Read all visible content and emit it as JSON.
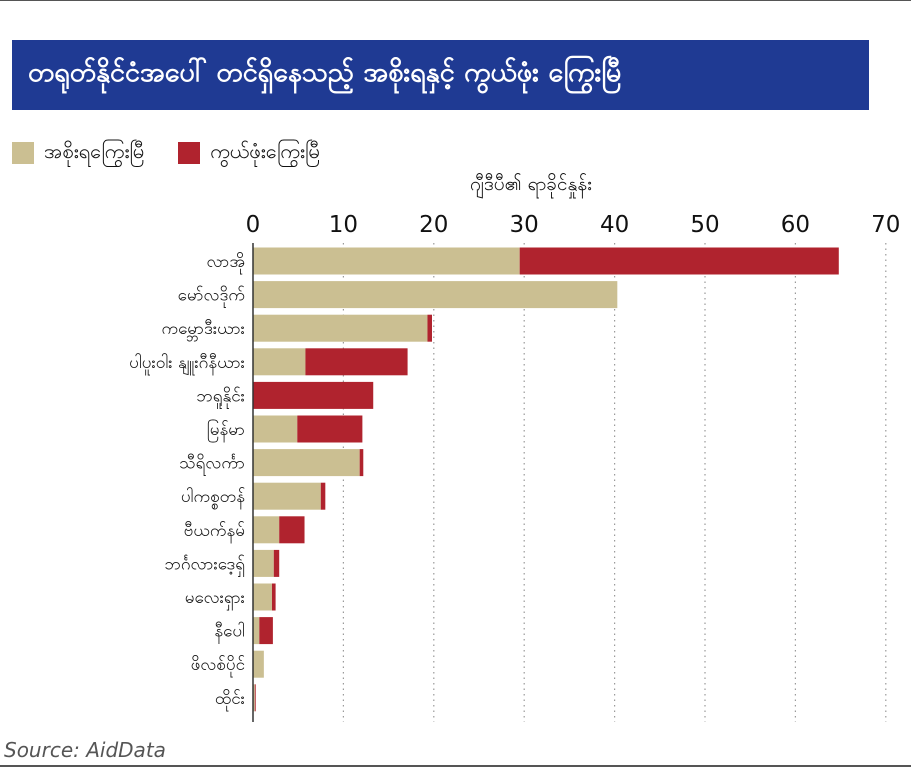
{
  "title": "တရုတ်နိုင်ငံအပေါ် တင်ရှိနေသည့်  အစိုးရနှင့် ကွယ်ဖုံး ကြွေးမြီ",
  "legend": [
    {
      "label": "အစိုးရကြွေးမြီ",
      "color": "#cbbf92"
    },
    {
      "label": "ကွယ်ဖုံးကြွေးမြီ",
      "color": "#b0232e"
    }
  ],
  "source": "Source: AidData",
  "chart_data": {
    "type": "bar",
    "orientation": "horizontal",
    "stacked": true,
    "xlabel": "ဂျီဒီပီ၏ ရာခိုင်နှုန်း",
    "xlim": [
      0,
      70
    ],
    "xticks": [
      0,
      10,
      20,
      30,
      40,
      50,
      60,
      70
    ],
    "grid": "vertical-dotted",
    "legend_position": "top-left",
    "categories": [
      "လာအို",
      "မော်လဒိုက်",
      "ကမ္ဘောဒီးယား",
      "ပါပူးဝါး နျူးဂီနီယား",
      "ဘရူနိုင်း",
      "မြန်မာ",
      "သီရိလင်္ကာ",
      "ပါကစ္စတန်",
      "ဗီယက်နမ်",
      "ဘင်္ဂလားဒေ့ရှ်",
      "မလေးရှား",
      "နီပေါ",
      "ဖိလစ်ပိုင်",
      "ထိုင်း"
    ],
    "series": [
      {
        "name": "အစိုးရကြွေးမြီ",
        "values": [
          29.5,
          40.3,
          19.3,
          5.8,
          0,
          4.9,
          11.8,
          7.5,
          2.9,
          2.3,
          2.1,
          0.7,
          1.2,
          0.2
        ]
      },
      {
        "name": "ကွယ်ဖုံးကြွေးမြီ",
        "values": [
          35.3,
          0,
          0.5,
          11.3,
          13.3,
          7.2,
          0.4,
          0.5,
          2.8,
          0.6,
          0.4,
          1.5,
          0,
          0.1
        ]
      }
    ]
  }
}
